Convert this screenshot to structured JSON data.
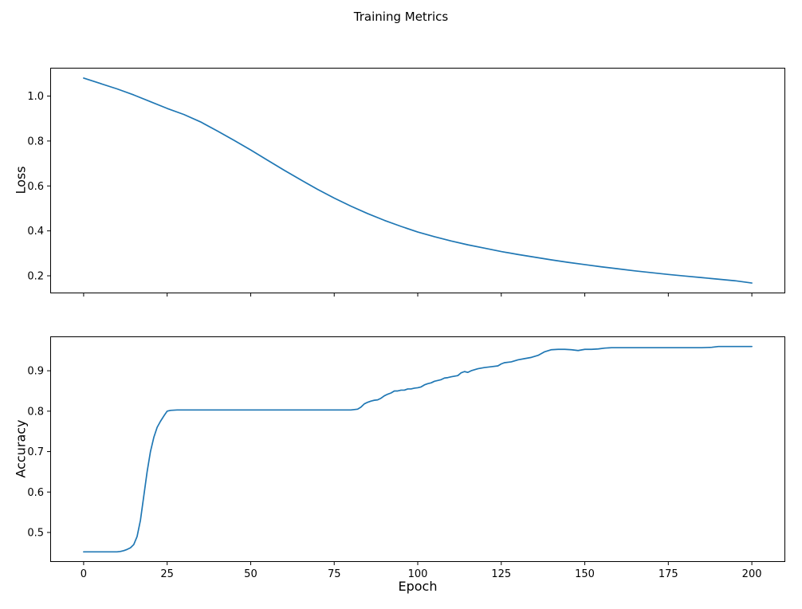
{
  "figure": {
    "title": "Training Metrics",
    "line_color": "#1f77b4",
    "background": "#ffffff"
  },
  "chart_data": [
    {
      "type": "line",
      "series_name": "loss",
      "ylabel": "Loss",
      "xlabel": "",
      "xlim": [
        -10,
        210
      ],
      "ylim": [
        0.122,
        1.126
      ],
      "xticks": [
        0,
        25,
        50,
        75,
        100,
        125,
        150,
        175,
        200
      ],
      "show_xtick_labels": false,
      "yticks": [
        0.2,
        0.4,
        0.6,
        0.8,
        1.0
      ],
      "x": [
        0,
        5,
        10,
        15,
        20,
        25,
        30,
        35,
        40,
        45,
        50,
        55,
        60,
        65,
        70,
        75,
        80,
        85,
        90,
        95,
        100,
        105,
        110,
        115,
        120,
        125,
        130,
        135,
        140,
        145,
        150,
        155,
        160,
        165,
        170,
        175,
        180,
        185,
        190,
        195,
        200
      ],
      "y": [
        1.08,
        1.056,
        1.032,
        1.005,
        0.975,
        0.945,
        0.918,
        0.885,
        0.845,
        0.803,
        0.76,
        0.715,
        0.67,
        0.627,
        0.585,
        0.546,
        0.51,
        0.477,
        0.447,
        0.42,
        0.395,
        0.374,
        0.355,
        0.338,
        0.323,
        0.308,
        0.295,
        0.283,
        0.271,
        0.26,
        0.25,
        0.24,
        0.231,
        0.222,
        0.214,
        0.206,
        0.199,
        0.192,
        0.185,
        0.178,
        0.168
      ]
    },
    {
      "type": "line",
      "series_name": "accuracy",
      "ylabel": "Accuracy",
      "xlabel": "Epoch",
      "xlim": [
        -10,
        210
      ],
      "ylim": [
        0.427,
        0.985
      ],
      "xticks": [
        0,
        25,
        50,
        75,
        100,
        125,
        150,
        175,
        200
      ],
      "show_xtick_labels": true,
      "yticks": [
        0.5,
        0.6,
        0.7,
        0.8,
        0.9
      ],
      "x": [
        0,
        2,
        4,
        6,
        8,
        10,
        11,
        12,
        13,
        14,
        15,
        16,
        17,
        18,
        19,
        20,
        21,
        22,
        23,
        24,
        25,
        26,
        28,
        30,
        35,
        40,
        45,
        50,
        55,
        60,
        65,
        70,
        75,
        80,
        82,
        83,
        84,
        85,
        86,
        87,
        88,
        89,
        90,
        91,
        92,
        93,
        94,
        95,
        96,
        97,
        98,
        99,
        100,
        101,
        102,
        103,
        104,
        105,
        106,
        107,
        108,
        109,
        110,
        112,
        113,
        114,
        115,
        116,
        118,
        120,
        122,
        124,
        125,
        126,
        128,
        130,
        132,
        134,
        136,
        138,
        140,
        142,
        144,
        146,
        148,
        150,
        152,
        154,
        156,
        158,
        160,
        165,
        170,
        175,
        180,
        185,
        188,
        190,
        195,
        200
      ],
      "y": [
        0.452,
        0.452,
        0.452,
        0.452,
        0.452,
        0.452,
        0.453,
        0.455,
        0.458,
        0.462,
        0.47,
        0.49,
        0.53,
        0.59,
        0.65,
        0.7,
        0.735,
        0.76,
        0.775,
        0.788,
        0.8,
        0.802,
        0.803,
        0.803,
        0.803,
        0.803,
        0.803,
        0.803,
        0.803,
        0.803,
        0.803,
        0.803,
        0.803,
        0.803,
        0.805,
        0.81,
        0.818,
        0.822,
        0.825,
        0.827,
        0.828,
        0.832,
        0.838,
        0.842,
        0.845,
        0.85,
        0.85,
        0.852,
        0.852,
        0.855,
        0.855,
        0.857,
        0.858,
        0.86,
        0.865,
        0.868,
        0.87,
        0.874,
        0.876,
        0.878,
        0.882,
        0.883,
        0.885,
        0.888,
        0.895,
        0.898,
        0.896,
        0.9,
        0.905,
        0.908,
        0.91,
        0.912,
        0.917,
        0.92,
        0.922,
        0.927,
        0.93,
        0.933,
        0.938,
        0.947,
        0.952,
        0.953,
        0.953,
        0.952,
        0.95,
        0.953,
        0.953,
        0.954,
        0.956,
        0.957,
        0.957,
        0.957,
        0.957,
        0.957,
        0.957,
        0.957,
        0.958,
        0.96,
        0.96,
        0.96
      ]
    }
  ]
}
